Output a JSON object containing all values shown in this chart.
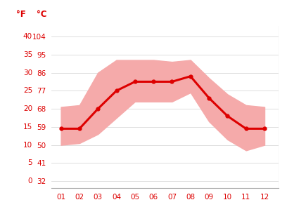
{
  "months": [
    1,
    2,
    3,
    4,
    5,
    6,
    7,
    8,
    9,
    10,
    11,
    12
  ],
  "month_labels": [
    "01",
    "02",
    "03",
    "04",
    "05",
    "06",
    "07",
    "08",
    "09",
    "10",
    "11",
    "12"
  ],
  "mean_temp_c": [
    14.5,
    14.5,
    20.0,
    25.0,
    27.5,
    27.5,
    27.5,
    29.0,
    23.0,
    18.0,
    14.5,
    14.5
  ],
  "high_temp_c": [
    20.5,
    21.0,
    30.0,
    33.5,
    33.5,
    33.5,
    33.0,
    33.5,
    28.5,
    24.0,
    21.0,
    20.5
  ],
  "low_temp_c": [
    10.0,
    10.5,
    13.0,
    17.5,
    22.0,
    22.0,
    22.0,
    24.5,
    16.5,
    11.5,
    8.5,
    10.0
  ],
  "yticks_c": [
    0,
    5,
    10,
    15,
    20,
    25,
    30,
    35,
    40
  ],
  "yticks_f": [
    32,
    41,
    50,
    59,
    68,
    77,
    86,
    95,
    104
  ],
  "line_color": "#dd0000",
  "band_color": "#f5aaaa",
  "grid_color": "#d8d8d8",
  "tick_color": "#dd0000",
  "bg_color": "#ffffff",
  "label_f": "°F",
  "label_c": "°C",
  "ylim_c": [
    -2,
    43
  ],
  "xlim": [
    0.5,
    12.75
  ]
}
